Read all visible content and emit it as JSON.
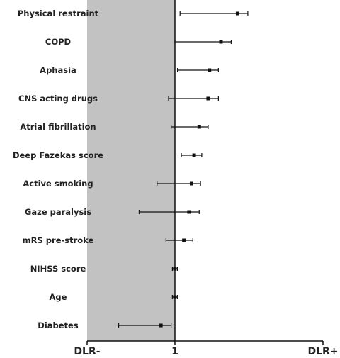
{
  "chart_data": {
    "type": "forest",
    "reference_value": 1,
    "x_axis": {
      "tick_labels": [
        "DLR-",
        "1",
        "DLR+"
      ]
    },
    "colors": {
      "shaded_region": "#c2c2c2",
      "marks": "#111111"
    },
    "rows": [
      {
        "label": "Physical restraint",
        "estimate": 1.49,
        "lower": 1.04,
        "upper": 1.57
      },
      {
        "label": "COPD",
        "estimate": 1.36,
        "lower": 1.0,
        "upper": 1.44
      },
      {
        "label": "Aphasia",
        "estimate": 1.27,
        "lower": 1.02,
        "upper": 1.34
      },
      {
        "label": "CNS acting drugs",
        "estimate": 1.26,
        "lower": 0.95,
        "upper": 1.34
      },
      {
        "label": "Atrial fibrillation",
        "estimate": 1.19,
        "lower": 0.97,
        "upper": 1.26
      },
      {
        "label": "Deep Fazekas score",
        "estimate": 1.15,
        "lower": 1.05,
        "upper": 1.21
      },
      {
        "label": "Active smoking",
        "estimate": 1.13,
        "lower": 0.86,
        "upper": 1.2
      },
      {
        "label": "Gaze paralysis",
        "estimate": 1.11,
        "lower": 0.72,
        "upper": 1.19
      },
      {
        "label": "mRS pre-stroke",
        "estimate": 1.07,
        "lower": 0.93,
        "upper": 1.14
      },
      {
        "label": "NIHSS score",
        "estimate": 1.0,
        "lower": 0.98,
        "upper": 1.02
      },
      {
        "label": "Age",
        "estimate": 1.0,
        "lower": 0.98,
        "upper": 1.02
      },
      {
        "label": "Diabetes",
        "estimate": 0.89,
        "lower": 0.56,
        "upper": 0.97
      }
    ]
  }
}
